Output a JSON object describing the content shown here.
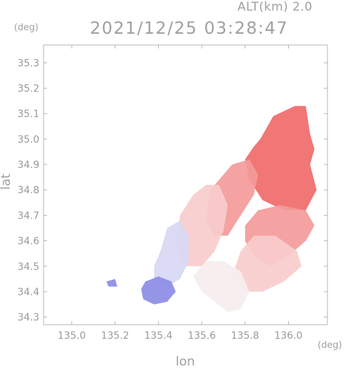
{
  "header": {
    "altitude_label": "ALT(km) 2.0",
    "timestamp": "2021/12/25 03:28:47"
  },
  "chart_data": {
    "type": "heatmap",
    "title": "2021/12/25 03:28:47",
    "xlabel": "lon",
    "ylabel": "lat",
    "x_unit": "(deg)",
    "y_unit": "(deg)",
    "xlim": [
      134.87,
      136.18
    ],
    "ylim": [
      34.27,
      35.37
    ],
    "x_ticks": [
      "135.0",
      "135.2",
      "135.4",
      "135.6",
      "135.8",
      "136.0"
    ],
    "y_ticks": [
      "34.3",
      "34.4",
      "34.5",
      "34.6",
      "34.7",
      "34.8",
      "34.9",
      "35.0",
      "35.1",
      "35.2",
      "35.3"
    ],
    "grid": false,
    "colors": {
      "positive_strong": "#f06a6a",
      "positive_medium": "#f49a9a",
      "positive_weak": "#f8cccc",
      "near_zero": "#f6eeee",
      "negative_weak": "#d8d8f4",
      "negative_strong": "#8c8ce6"
    },
    "regions": [
      {
        "name": "north-east strong red",
        "level": "positive_strong",
        "polygon": [
          [
            135.87,
            35.0
          ],
          [
            135.93,
            35.09
          ],
          [
            136.03,
            35.13
          ],
          [
            136.08,
            35.13
          ],
          [
            136.1,
            35.02
          ],
          [
            136.12,
            34.96
          ],
          [
            136.1,
            34.9
          ],
          [
            136.13,
            34.8
          ],
          [
            136.08,
            34.72
          ],
          [
            135.98,
            34.72
          ],
          [
            135.88,
            34.76
          ],
          [
            135.82,
            34.84
          ],
          [
            135.8,
            34.92
          ],
          [
            135.84,
            34.97
          ]
        ]
      },
      {
        "name": "central red band",
        "level": "positive_medium",
        "polygon": [
          [
            135.64,
            34.8
          ],
          [
            135.74,
            34.9
          ],
          [
            135.82,
            34.92
          ],
          [
            135.86,
            34.86
          ],
          [
            135.84,
            34.78
          ],
          [
            135.78,
            34.7
          ],
          [
            135.72,
            34.62
          ],
          [
            135.66,
            34.62
          ],
          [
            135.62,
            34.68
          ]
        ]
      },
      {
        "name": "east lobe medium red",
        "level": "positive_medium",
        "polygon": [
          [
            135.8,
            34.66
          ],
          [
            135.86,
            34.72
          ],
          [
            135.96,
            34.74
          ],
          [
            136.08,
            34.72
          ],
          [
            136.12,
            34.66
          ],
          [
            136.08,
            34.6
          ],
          [
            136.0,
            34.54
          ],
          [
            135.92,
            34.5
          ],
          [
            135.84,
            34.54
          ],
          [
            135.8,
            34.6
          ]
        ]
      },
      {
        "name": "central weak red",
        "level": "positive_weak",
        "polygon": [
          [
            135.5,
            34.7
          ],
          [
            135.56,
            34.78
          ],
          [
            135.62,
            34.82
          ],
          [
            135.68,
            34.82
          ],
          [
            135.72,
            34.74
          ],
          [
            135.7,
            34.64
          ],
          [
            135.66,
            34.56
          ],
          [
            135.6,
            34.5
          ],
          [
            135.52,
            34.5
          ],
          [
            135.48,
            34.58
          ]
        ]
      },
      {
        "name": "south-east weak red",
        "level": "positive_weak",
        "polygon": [
          [
            135.78,
            34.56
          ],
          [
            135.84,
            34.62
          ],
          [
            135.94,
            34.62
          ],
          [
            136.04,
            34.56
          ],
          [
            136.06,
            34.5
          ],
          [
            135.98,
            34.44
          ],
          [
            135.88,
            34.4
          ],
          [
            135.8,
            34.4
          ],
          [
            135.74,
            34.46
          ]
        ]
      },
      {
        "name": "southern near-zero",
        "level": "near_zero",
        "polygon": [
          [
            135.56,
            34.46
          ],
          [
            135.62,
            34.52
          ],
          [
            135.7,
            34.52
          ],
          [
            135.78,
            34.48
          ],
          [
            135.82,
            34.4
          ],
          [
            135.78,
            34.33
          ],
          [
            135.72,
            34.32
          ],
          [
            135.66,
            34.36
          ],
          [
            135.6,
            34.4
          ]
        ]
      },
      {
        "name": "western weak blue",
        "level": "negative_weak",
        "polygon": [
          [
            135.41,
            34.56
          ],
          [
            135.44,
            34.65
          ],
          [
            135.5,
            34.68
          ],
          [
            135.54,
            34.62
          ],
          [
            135.54,
            34.52
          ],
          [
            135.5,
            34.45
          ],
          [
            135.44,
            34.42
          ],
          [
            135.38,
            34.44
          ],
          [
            135.38,
            34.5
          ]
        ]
      },
      {
        "name": "south-west strong blue",
        "level": "negative_strong",
        "polygon": [
          [
            135.34,
            34.44
          ],
          [
            135.4,
            34.46
          ],
          [
            135.46,
            34.44
          ],
          [
            135.48,
            34.4
          ],
          [
            135.44,
            34.36
          ],
          [
            135.38,
            34.35
          ],
          [
            135.33,
            34.37
          ],
          [
            135.32,
            34.41
          ]
        ]
      },
      {
        "name": "western blue specks",
        "level": "negative_strong",
        "polygon": [
          [
            135.16,
            34.44
          ],
          [
            135.2,
            34.45
          ],
          [
            135.21,
            34.42
          ],
          [
            135.17,
            34.42
          ]
        ]
      }
    ]
  }
}
